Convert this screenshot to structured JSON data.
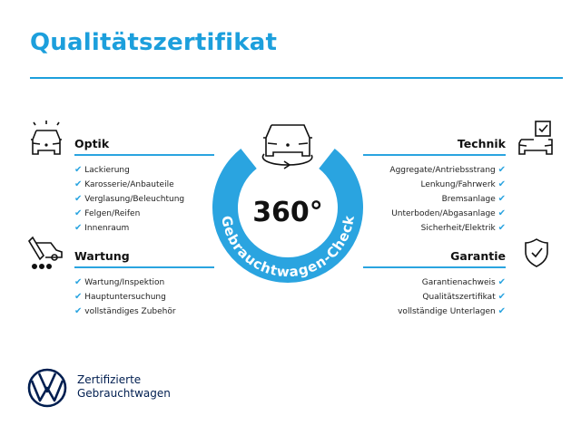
{
  "title": "Qualitätszertifikat",
  "accent_color": "#2aa4e0",
  "center": {
    "big": "360°",
    "ring_text": "Gebrauchtwagen-Check",
    "icon": "rotating-car-icon"
  },
  "sections": {
    "optik": {
      "heading": "Optik",
      "icon": "car-lights-icon",
      "items": [
        "Lackierung",
        "Karosserie/Anbauteile",
        "Verglasung/Beleuchtung",
        "Felgen/Reifen",
        "Innenraum"
      ]
    },
    "wartung": {
      "heading": "Wartung",
      "icon": "service-truck-icon",
      "items": [
        "Wartung/Inspektion",
        "Hauptuntersuchung",
        "vollständiges Zubehör"
      ]
    },
    "technik": {
      "heading": "Technik",
      "icon": "car-checklist-icon",
      "items": [
        "Aggregate/Antriebsstrang",
        "Lenkung/Fahrwerk",
        "Bremsanlage",
        "Unterboden/Abgasanlage",
        "Sicherheit/Elektrik"
      ]
    },
    "garantie": {
      "heading": "Garantie",
      "icon": "shield-check-icon",
      "items": [
        "Garantienachweis",
        "Qualitätszertifikat",
        "vollständige Unterlagen"
      ]
    }
  },
  "check_mark": "✔",
  "brand": {
    "line1": "Zertifizierte",
    "line2": "Gebrauchtwagen",
    "logo": "vw-logo"
  }
}
